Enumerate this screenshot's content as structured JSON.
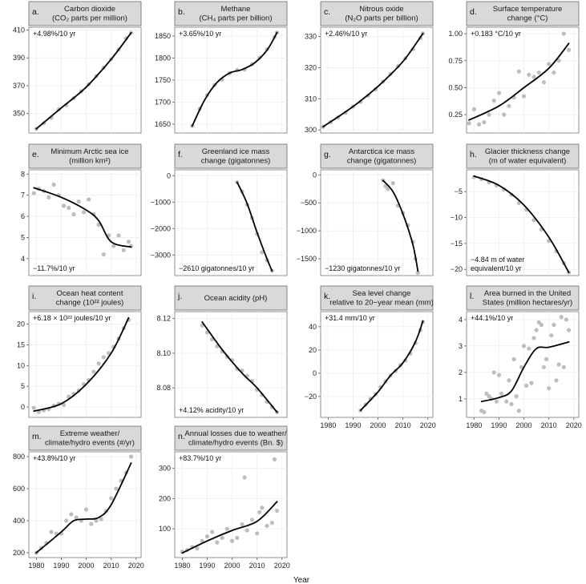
{
  "figure": {
    "x_axis_label": "Year"
  },
  "chart_data": [
    {
      "id": "a",
      "type": "scatter",
      "letter": "a.",
      "title": [
        "Carbon dioxide",
        "(CO₂ parts per million)"
      ],
      "annotation": "+4.98%/10 yr",
      "annotation_pos": "top-left",
      "xlim": [
        1977,
        2022
      ],
      "ylim": [
        336,
        412
      ],
      "yticks": [
        350,
        370,
        390,
        410
      ],
      "xticks": [],
      "x": [
        1980,
        1983,
        1986,
        1989,
        1992,
        1995,
        1998,
        2001,
        2004,
        2007,
        2010,
        2013,
        2016,
        2018
      ],
      "y": [
        339,
        343,
        347,
        353,
        356,
        361,
        366,
        371,
        377,
        383,
        389,
        396,
        404,
        408
      ],
      "trend": {
        "x": [
          1980,
          1990,
          2000,
          2010,
          2018
        ],
        "y": [
          339,
          354,
          369,
          389,
          408
        ]
      }
    },
    {
      "id": "b",
      "type": "scatter",
      "letter": "b.",
      "title": [
        "Methane",
        "(CH₄ parts per billion)"
      ],
      "annotation": "+3.65%/10 yr",
      "annotation_pos": "top-left",
      "xlim": [
        1977,
        2022
      ],
      "ylim": [
        1630,
        1870
      ],
      "yticks": [
        1650,
        1700,
        1750,
        1800,
        1850
      ],
      "xticks": [],
      "x": [
        1984,
        1987,
        1990,
        1993,
        1996,
        1999,
        2002,
        2005,
        2008,
        2011,
        2014,
        2017,
        2018
      ],
      "y": [
        1646,
        1685,
        1716,
        1739,
        1751,
        1766,
        1773,
        1774,
        1786,
        1801,
        1820,
        1848,
        1858
      ],
      "trend": {
        "x": [
          1984,
          1989,
          1994,
          1999,
          2004,
          2009,
          2014,
          2018
        ],
        "y": [
          1646,
          1705,
          1745,
          1766,
          1774,
          1789,
          1818,
          1858
        ]
      }
    },
    {
      "id": "c",
      "type": "scatter",
      "letter": "c.",
      "title": [
        "Nitrous oxide",
        "(N₂O parts per billion)"
      ],
      "annotation": "+2.46%/10 yr",
      "annotation_pos": "top-left",
      "xlim": [
        1977,
        2022
      ],
      "ylim": [
        299,
        333
      ],
      "yticks": [
        300,
        310,
        320,
        330
      ],
      "xticks": [],
      "x": [
        1978,
        1981,
        1984,
        1987,
        1990,
        1993,
        1996,
        1999,
        2002,
        2005,
        2008,
        2011,
        2014,
        2017,
        2018
      ],
      "y": [
        301,
        302.5,
        304,
        305.5,
        307.5,
        309,
        311,
        313,
        315.5,
        318,
        320.5,
        323,
        326,
        329.5,
        331
      ],
      "trend": {
        "x": [
          1978,
          1990,
          2000,
          2010,
          2018
        ],
        "y": [
          301,
          307.5,
          314,
          322,
          331
        ]
      }
    },
    {
      "id": "d",
      "type": "scatter",
      "letter": "d.",
      "title": [
        "Surface temperature",
        "change (°C)"
      ],
      "annotation": "+0.183 °C/10 yr",
      "annotation_pos": "top-left",
      "xlim": [
        1977,
        2022
      ],
      "ylim": [
        0.08,
        1.06
      ],
      "yticks": [
        0.25,
        0.5,
        0.75,
        1.0
      ],
      "ytick_labels": [
        "0.25",
        "0.50",
        "0.75",
        "1.00"
      ],
      "xticks": [],
      "x": [
        1978,
        1980,
        1982,
        1984,
        1986,
        1988,
        1990,
        1992,
        1994,
        1996,
        1998,
        2000,
        2002,
        2004,
        2006,
        2008,
        2010,
        2012,
        2014,
        2016,
        2018
      ],
      "y": [
        0.17,
        0.3,
        0.16,
        0.18,
        0.25,
        0.38,
        0.45,
        0.25,
        0.33,
        0.41,
        0.65,
        0.42,
        0.62,
        0.6,
        0.64,
        0.55,
        0.72,
        0.64,
        0.75,
        1.0,
        0.85
      ],
      "trend": {
        "x": [
          1978,
          1990,
          2000,
          2010,
          2018
        ],
        "y": [
          0.2,
          0.33,
          0.5,
          0.68,
          0.91
        ]
      }
    },
    {
      "id": "e",
      "type": "scatter",
      "letter": "e.",
      "title": [
        "Minimum Arctic sea ice",
        "(million km²)"
      ],
      "annotation": "−11.7%/10 yr",
      "annotation_pos": "bottom-left",
      "xlim": [
        1977,
        2022
      ],
      "ylim": [
        3.2,
        8.2
      ],
      "yticks": [
        4,
        5,
        6,
        7,
        8
      ],
      "xticks": [],
      "x": [
        1979,
        1981,
        1983,
        1985,
        1987,
        1989,
        1991,
        1993,
        1995,
        1997,
        1999,
        2001,
        2003,
        2005,
        2007,
        2009,
        2011,
        2013,
        2015,
        2017,
        2018
      ],
      "y": [
        7.1,
        7.3,
        7.2,
        6.9,
        7.5,
        7.0,
        6.5,
        6.4,
        6.1,
        6.7,
        6.2,
        6.8,
        6.1,
        5.6,
        4.2,
        5.1,
        4.6,
        5.1,
        4.4,
        4.8,
        4.6
      ],
      "trend": {
        "x": [
          1979,
          1990,
          2000,
          2005,
          2010,
          2018
        ],
        "y": [
          7.35,
          6.9,
          6.3,
          5.8,
          4.8,
          4.55
        ]
      }
    },
    {
      "id": "f",
      "type": "scatter",
      "letter": "f.",
      "title": [
        "Greenland ice mass",
        "change (gigatonnes)"
      ],
      "annotation": "−2610 gigatonnes/10 yr",
      "annotation_pos": "bottom-left",
      "xlim": [
        1977,
        2022
      ],
      "ylim": [
        -3780,
        220
      ],
      "yticks": [
        0,
        -1000,
        -2000,
        -3000
      ],
      "ytick_labels": [
        "0",
        "−1000",
        "−2000",
        "−3000"
      ],
      "xticks": [],
      "x": [
        2002,
        2004,
        2006,
        2008,
        2010,
        2012,
        2014,
        2016
      ],
      "y": [
        -250,
        -600,
        -1100,
        -1600,
        -2200,
        -2900,
        -3200,
        -3600
      ],
      "trend": {
        "x": [
          2002,
          2006,
          2010,
          2014,
          2016
        ],
        "y": [
          -250,
          -1050,
          -2150,
          -3150,
          -3600
        ]
      }
    },
    {
      "id": "g",
      "type": "scatter",
      "letter": "g.",
      "title": [
        "Antarctica ice mass",
        "change (gigatonnes)"
      ],
      "annotation": "−1230 gigatonnes/10 yr",
      "annotation_pos": "bottom-left",
      "xlim": [
        1977,
        2022
      ],
      "ylim": [
        -1800,
        90
      ],
      "yticks": [
        0,
        -500,
        -1000,
        -1500
      ],
      "ytick_labels": [
        "0",
        "−500",
        "−1000",
        "−1500"
      ],
      "xticks": [],
      "x": [
        2002,
        2003,
        2004,
        2006,
        2008,
        2010,
        2012,
        2014,
        2015,
        2016
      ],
      "y": [
        -100,
        -200,
        -250,
        -150,
        -550,
        -680,
        -900,
        -1200,
        -1500,
        -1750
      ],
      "trend": {
        "x": [
          2002,
          2006,
          2010,
          2014,
          2016
        ],
        "y": [
          -100,
          -300,
          -700,
          -1250,
          -1720
        ]
      }
    },
    {
      "id": "h",
      "type": "scatter",
      "letter": "h.",
      "title": [
        "Glacier thickness change",
        "(m of water equivalent)"
      ],
      "annotation": [
        "−4.84 m of water",
        "equivalent/10 yr"
      ],
      "annotation_pos": "bottom-left",
      "xlim": [
        1977,
        2022
      ],
      "ylim": [
        -21.2,
        -0.8
      ],
      "yticks": [
        -5,
        -10,
        -15,
        -20
      ],
      "ytick_labels": [
        "−5",
        "−10",
        "−15",
        "−20"
      ],
      "xticks": [],
      "x": [
        1980,
        1983,
        1986,
        1989,
        1992,
        1995,
        1998,
        2001,
        2004,
        2007,
        2010,
        2013,
        2016,
        2018
      ],
      "y": [
        -2.2,
        -2.6,
        -3.2,
        -3.8,
        -4.6,
        -5.6,
        -7.2,
        -8.5,
        -10.5,
        -12.3,
        -14.5,
        -16.5,
        -18.8,
        -20.6
      ],
      "trend": {
        "x": [
          1980,
          1990,
          2000,
          2010,
          2018
        ],
        "y": [
          -2,
          -3.8,
          -7.6,
          -13.8,
          -20.6
        ]
      }
    },
    {
      "id": "i",
      "type": "scatter",
      "letter": "i.",
      "title": [
        "Ocean heat content",
        "change (10²² joules)"
      ],
      "annotation": "+6.18 × 10²² joules/10 yr",
      "annotation_pos": "top-left",
      "xlim": [
        1977,
        2022
      ],
      "ylim": [
        -2.5,
        23
      ],
      "yticks": [
        0,
        5,
        10,
        15,
        20
      ],
      "xticks": [],
      "x": [
        1979,
        1981,
        1983,
        1985,
        1987,
        1989,
        1991,
        1993,
        1995,
        1997,
        1999,
        2001,
        2003,
        2005,
        2007,
        2009,
        2011,
        2013,
        2015,
        2017
      ],
      "y": [
        -0.2,
        -1.2,
        -0.8,
        -0.5,
        0.3,
        0.8,
        0.5,
        2.5,
        3.2,
        4,
        5.5,
        6.5,
        8.5,
        10.5,
        12,
        13,
        14.5,
        16.5,
        19,
        21
      ],
      "trend": {
        "x": [
          1979,
          1990,
          2000,
          2010,
          2017
        ],
        "y": [
          -1,
          0.8,
          5.5,
          13,
          21.5
        ]
      }
    },
    {
      "id": "j",
      "type": "scatter",
      "letter": "j.",
      "title": [
        "Ocean acidity (pH)"
      ],
      "annotation": "+4.12% acidity/10 yr",
      "annotation_pos": "bottom-left",
      "xlim": [
        1977,
        2022
      ],
      "ylim": [
        8.063,
        8.124
      ],
      "yticks": [
        8.08,
        8.1,
        8.12
      ],
      "ytick_labels": [
        "8.08",
        "8.10",
        "8.12"
      ],
      "xticks": [],
      "x": [
        1988,
        1990,
        1992,
        1994,
        1996,
        1998,
        2000,
        2002,
        2004,
        2006,
        2008,
        2010,
        2012,
        2014,
        2016,
        2018
      ],
      "y": [
        8.116,
        8.112,
        8.108,
        8.104,
        8.101,
        8.098,
        8.096,
        8.091,
        8.09,
        8.087,
        8.084,
        8.079,
        8.076,
        8.072,
        8.069,
        8.066
      ],
      "trend": {
        "x": [
          1988,
          1995,
          2000,
          2005,
          2010,
          2018
        ],
        "y": [
          8.118,
          8.104,
          8.095,
          8.087,
          8.08,
          8.066
        ]
      }
    },
    {
      "id": "k",
      "type": "scatter",
      "letter": "k.",
      "title": [
        "Sea level change",
        "relative to 20−year mean (mm)"
      ],
      "annotation": "+31.4 mm/10 yr",
      "annotation_pos": "top-left",
      "xlim": [
        1977,
        2022
      ],
      "ylim": [
        -38,
        53
      ],
      "yticks": [
        -20,
        0,
        20,
        40
      ],
      "ytick_labels": [
        "−20",
        "0",
        "20",
        "40"
      ],
      "xticks": [
        1980,
        1990,
        2000,
        2010,
        2020
      ],
      "x": [
        1993,
        1995,
        1997,
        1999,
        2001,
        2003,
        2005,
        2007,
        2009,
        2011,
        2013,
        2015,
        2017,
        2018
      ],
      "y": [
        -32,
        -27,
        -22,
        -18,
        -12,
        -7,
        -2,
        2,
        7,
        11,
        17,
        26,
        37,
        44
      ],
      "trend": {
        "x": [
          1993,
          2000,
          2005,
          2010,
          2015,
          2018
        ],
        "y": [
          -32,
          -16,
          -2,
          9,
          27,
          45
        ]
      }
    },
    {
      "id": "l",
      "type": "scatter",
      "letter": "l.",
      "title": [
        "Area burned in the United",
        "States (million hectares/yr)"
      ],
      "annotation": "+44.1%/10 yr",
      "annotation_pos": "top-left",
      "xlim": [
        1977,
        2022
      ],
      "ylim": [
        0.3,
        4.3
      ],
      "yticks": [
        1,
        2,
        3,
        4
      ],
      "xticks": [
        1980,
        1990,
        2000,
        2010,
        2020
      ],
      "x": [
        1983,
        1984,
        1985,
        1986,
        1987,
        1988,
        1989,
        1990,
        1991,
        1993,
        1994,
        1995,
        1996,
        1997,
        1998,
        1999,
        2000,
        2001,
        2002,
        2003,
        2004,
        2005,
        2006,
        2007,
        2008,
        2009,
        2010,
        2011,
        2012,
        2013,
        2014,
        2015,
        2016,
        2017,
        2018
      ],
      "y": [
        0.55,
        0.5,
        1.2,
        1.1,
        1.0,
        2.0,
        0.9,
        1.9,
        1.2,
        0.9,
        1.7,
        0.8,
        2.5,
        1.1,
        0.55,
        2.2,
        3.0,
        1.5,
        2.9,
        1.6,
        3.3,
        3.6,
        3.9,
        3.8,
        2.2,
        2.5,
        1.4,
        3.4,
        3.8,
        1.7,
        2.3,
        4.1,
        2.2,
        4.0,
        3.6
      ],
      "trend": {
        "x": [
          1983,
          1990,
          1995,
          2000,
          2005,
          2010,
          2018
        ],
        "y": [
          0.9,
          1.05,
          1.3,
          2.2,
          2.9,
          2.95,
          3.15
        ]
      }
    },
    {
      "id": "m",
      "type": "scatter",
      "letter": "m.",
      "title": [
        "Extreme weather/",
        "climate/hydro events (#/yr)"
      ],
      "annotation": "+43.8%/10 yr",
      "annotation_pos": "top-left",
      "xlim": [
        1977,
        2022
      ],
      "ylim": [
        170,
        830
      ],
      "yticks": [
        200,
        400,
        600,
        800
      ],
      "xticks": [
        1980,
        1990,
        2000,
        2010,
        2020
      ],
      "x": [
        1980,
        1982,
        1984,
        1986,
        1988,
        1990,
        1992,
        1994,
        1996,
        1998,
        2000,
        2002,
        2004,
        2006,
        2008,
        2010,
        2012,
        2014,
        2016,
        2018
      ],
      "y": [
        200,
        230,
        260,
        330,
        320,
        320,
        400,
        440,
        420,
        400,
        470,
        380,
        400,
        410,
        460,
        540,
        600,
        650,
        700,
        800
      ],
      "trend": {
        "x": [
          1980,
          1990,
          1995,
          2000,
          2005,
          2010,
          2018
        ],
        "y": [
          200,
          330,
          400,
          410,
          420,
          500,
          760
        ]
      }
    },
    {
      "id": "n",
      "type": "scatter",
      "letter": "n.",
      "title": [
        "Annual losses due to weather/",
        "climate/hydro events (Bn. $)"
      ],
      "annotation": "+83.7%/10 yr",
      "annotation_pos": "top-left",
      "xlim": [
        1977,
        2022
      ],
      "ylim": [
        5,
        355
      ],
      "yticks": [
        100,
        200,
        300
      ],
      "xticks": [
        1980,
        1990,
        2000,
        2010,
        2020
      ],
      "x": [
        1980,
        1982,
        1984,
        1986,
        1988,
        1990,
        1992,
        1994,
        1996,
        1998,
        2000,
        2002,
        2004,
        2005,
        2006,
        2008,
        2010,
        2011,
        2012,
        2014,
        2016,
        2017,
        2018
      ],
      "y": [
        25,
        30,
        40,
        35,
        60,
        75,
        90,
        55,
        70,
        100,
        60,
        70,
        115,
        270,
        95,
        130,
        85,
        155,
        170,
        110,
        120,
        330,
        160
      ],
      "trend": {
        "x": [
          1980,
          1990,
          2000,
          2010,
          2018
        ],
        "y": [
          20,
          60,
          95,
          125,
          190
        ]
      }
    }
  ]
}
